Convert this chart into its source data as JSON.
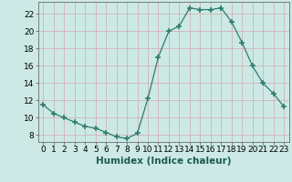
{
  "x": [
    0,
    1,
    2,
    3,
    4,
    5,
    6,
    7,
    8,
    9,
    10,
    11,
    12,
    13,
    14,
    15,
    16,
    17,
    18,
    19,
    20,
    21,
    22,
    23
  ],
  "y": [
    11.5,
    10.5,
    10.0,
    9.5,
    9.0,
    8.8,
    8.3,
    7.8,
    7.6,
    8.2,
    12.2,
    17.0,
    20.0,
    20.6,
    22.7,
    22.5,
    22.5,
    22.7,
    21.1,
    18.7,
    16.0,
    14.0,
    12.8,
    11.3
  ],
  "xlabel": "Humidex (Indice chaleur)",
  "ylim": [
    7.2,
    23.4
  ],
  "xlim": [
    -0.5,
    23.5
  ],
  "yticks": [
    8,
    10,
    12,
    14,
    16,
    18,
    20,
    22
  ],
  "xticks": [
    0,
    1,
    2,
    3,
    4,
    5,
    6,
    7,
    8,
    9,
    10,
    11,
    12,
    13,
    14,
    15,
    16,
    17,
    18,
    19,
    20,
    21,
    22,
    23
  ],
  "line_color": "#2e7d6e",
  "marker_color": "#2e7d6e",
  "bg_color": "#cce9e5",
  "grid_color": "#b8d8d4",
  "xlabel_fontsize": 7.5,
  "tick_fontsize": 6.5
}
